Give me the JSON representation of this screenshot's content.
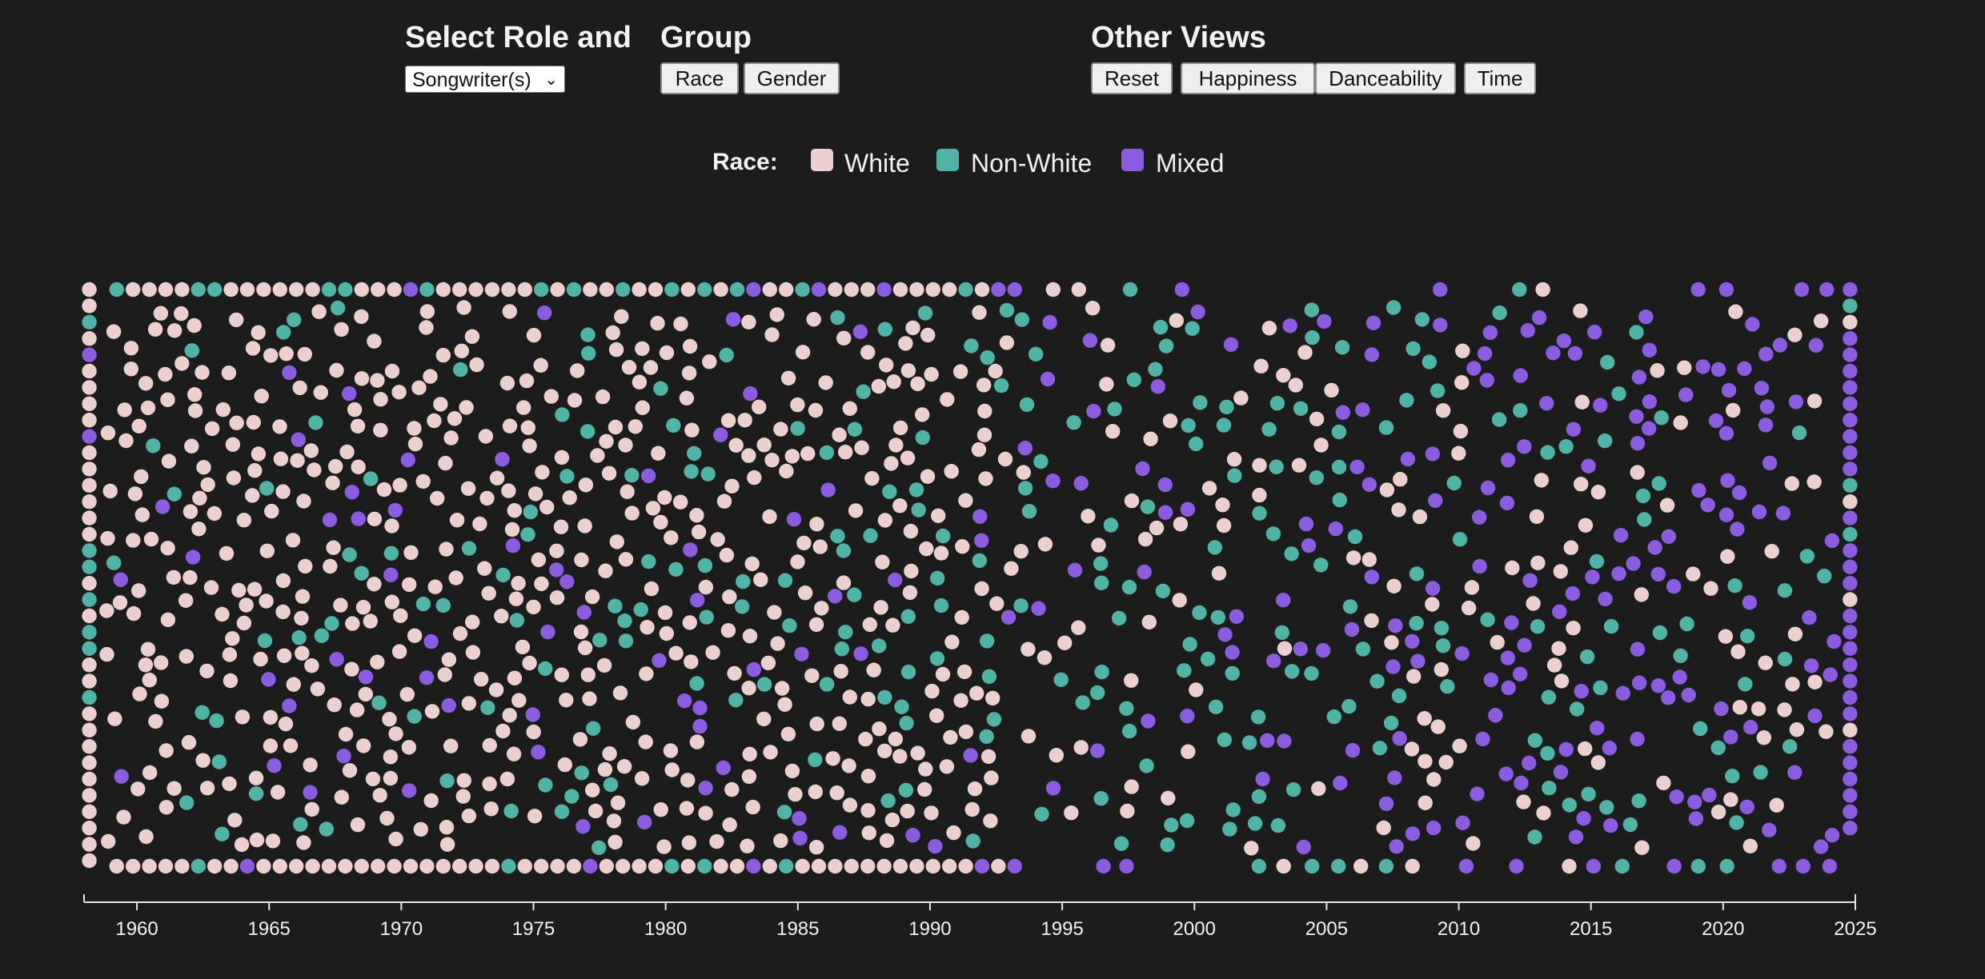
{
  "controls": {
    "role_title": "Select Role and",
    "group_title": "Group",
    "other_title": "Other Views",
    "role_select_value": "Songwriter(s)",
    "group_buttons": [
      "Race",
      "Gender"
    ],
    "other_buttons": [
      "Reset",
      "Happiness",
      "Danceability",
      "Time"
    ]
  },
  "legend": {
    "label": "Race:",
    "items": [
      {
        "name": "White",
        "color": "#ecd0d0"
      },
      {
        "name": "Non-White",
        "color": "#4fb3a5"
      },
      {
        "name": "Mixed",
        "color": "#8c5ce0"
      }
    ]
  },
  "chart_data": {
    "type": "scatter",
    "title": "",
    "xlabel": "",
    "ylabel": "",
    "xlim": [
      1958,
      2025
    ],
    "x_ticks": [
      "1960",
      "1965",
      "1970",
      "1975",
      "1980",
      "1985",
      "1990",
      "1995",
      "2000",
      "2005",
      "2010",
      "2015",
      "2020",
      "2025"
    ],
    "grid": false,
    "legend_position": "top-center",
    "marker": "circle",
    "series": [
      {
        "name": "White",
        "color": "#ecd0d0",
        "density_by_era": [
          {
            "from": 1958,
            "to": 1975,
            "share": 0.82
          },
          {
            "from": 1975,
            "to": 1993,
            "share": 0.72
          },
          {
            "from": 1993,
            "to": 2006,
            "share": 0.3
          },
          {
            "from": 2006,
            "to": 2025,
            "share": 0.25
          }
        ]
      },
      {
        "name": "Non-White",
        "color": "#4fb3a5",
        "density_by_era": [
          {
            "from": 1958,
            "to": 1975,
            "share": 0.13
          },
          {
            "from": 1975,
            "to": 1993,
            "share": 0.2
          },
          {
            "from": 1993,
            "to": 2006,
            "share": 0.45
          },
          {
            "from": 2006,
            "to": 2025,
            "share": 0.22
          }
        ]
      },
      {
        "name": "Mixed",
        "color": "#8c5ce0",
        "density_by_era": [
          {
            "from": 1958,
            "to": 1975,
            "share": 0.05
          },
          {
            "from": 1975,
            "to": 1993,
            "share": 0.08
          },
          {
            "from": 1993,
            "to": 2006,
            "share": 0.25
          },
          {
            "from": 2006,
            "to": 2025,
            "share": 0.53
          }
        ]
      }
    ]
  }
}
